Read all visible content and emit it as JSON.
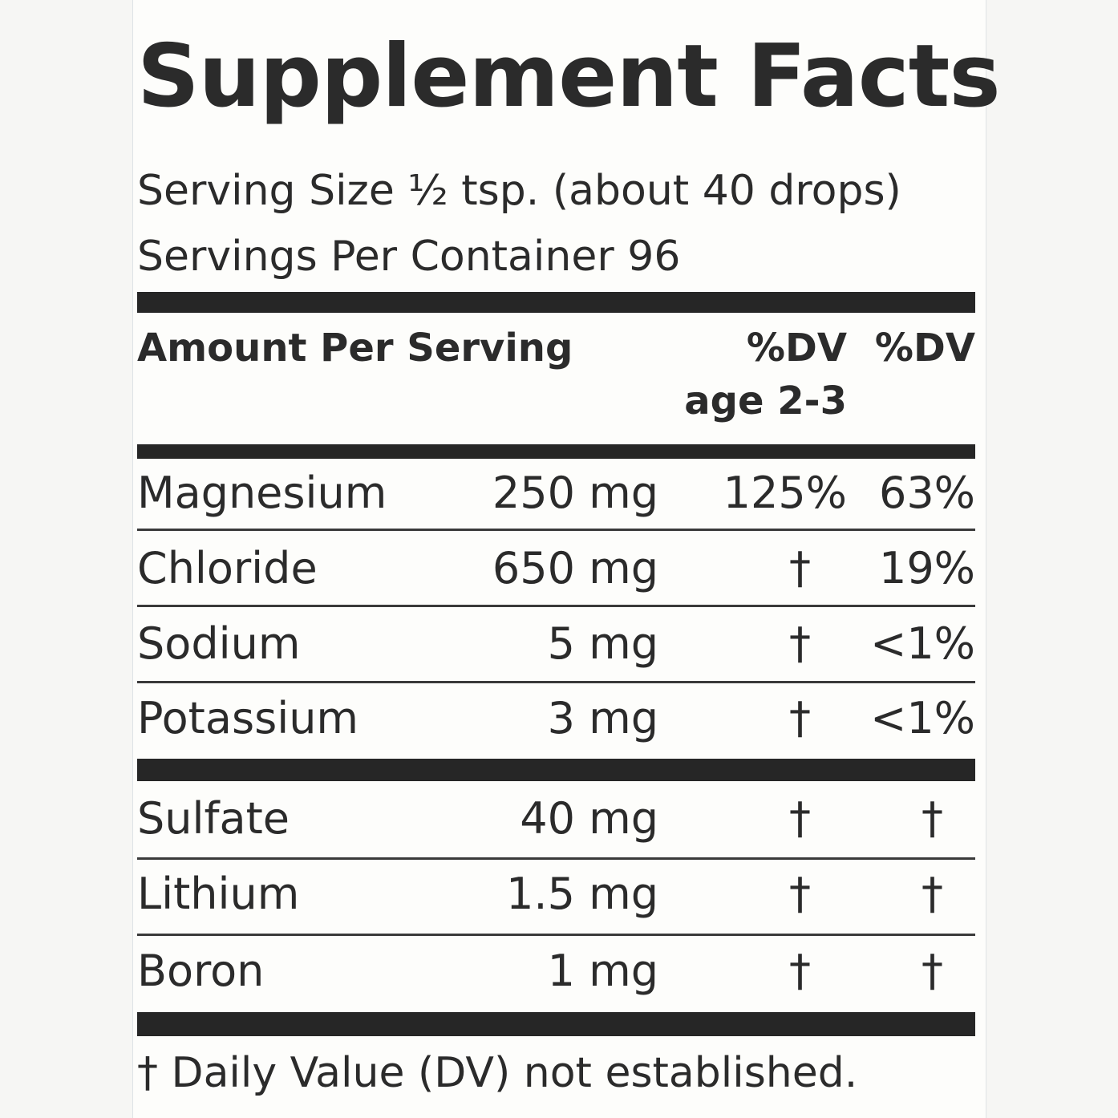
{
  "label": {
    "title": "Supplement Facts",
    "serving_size": "Serving Size ½ tsp. (about 40 drops)",
    "servings_per_container": "Servings Per Container 96",
    "header": {
      "amount": "Amount Per Serving",
      "dv_child": "%DV",
      "dv_child_sub": "age 2-3",
      "dv": "%DV"
    },
    "rows": [
      [
        "Magnesium",
        "250 mg",
        "125%",
        "63%"
      ],
      [
        "Chloride",
        "650 mg",
        "†",
        "19%"
      ],
      [
        "Sodium",
        "5 mg",
        "†",
        "<1%"
      ],
      [
        "Potassium",
        "3 mg",
        "†",
        "<1%"
      ],
      [
        "Sulfate",
        "40 mg",
        "†",
        "†"
      ],
      [
        "Lithium",
        "1.5 mg",
        "†",
        "†"
      ],
      [
        "Boron",
        "1 mg",
        "†",
        "†"
      ]
    ],
    "footnote": "† Daily Value (DV) not established."
  }
}
